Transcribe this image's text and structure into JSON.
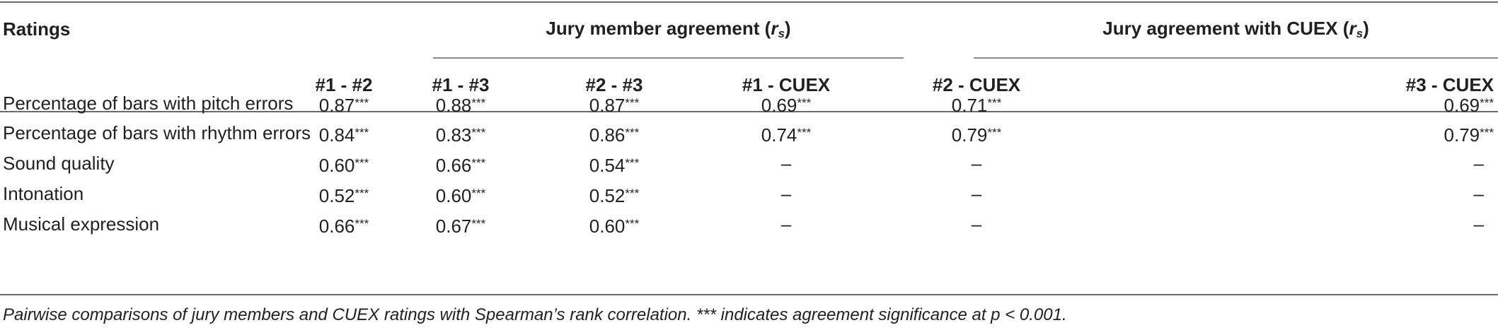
{
  "table": {
    "row_header_label": "Ratings",
    "group1": {
      "label": "Jury member agreement (",
      "symbol": "r",
      "subscript": "s",
      "close": ")"
    },
    "group2": {
      "label": "Jury agreement with CUEX (",
      "symbol": "r",
      "subscript": "s",
      "close": ")"
    },
    "columns": [
      "#1 - #2",
      "#1 - #3",
      "#2 - #3",
      "#1 - CUEX",
      "#2 - CUEX",
      "#3 - CUEX"
    ],
    "rows": [
      {
        "label": "Percentage of bars with pitch errors",
        "cells": [
          {
            "v": "0.87",
            "s": "***"
          },
          {
            "v": "0.88",
            "s": "***"
          },
          {
            "v": "0.87",
            "s": "***"
          },
          {
            "v": "0.69",
            "s": "***"
          },
          {
            "v": "0.71",
            "s": "***"
          },
          {
            "v": "0.69",
            "s": "***"
          }
        ]
      },
      {
        "label": "Percentage of bars with rhythm errors",
        "cells": [
          {
            "v": "0.84",
            "s": "***"
          },
          {
            "v": "0.83",
            "s": "***"
          },
          {
            "v": "0.86",
            "s": "***"
          },
          {
            "v": "0.74",
            "s": "***"
          },
          {
            "v": "0.79",
            "s": "***"
          },
          {
            "v": "0.79",
            "s": "***"
          }
        ]
      },
      {
        "label": "Sound quality",
        "cells": [
          {
            "v": "0.60",
            "s": "***"
          },
          {
            "v": "0.66",
            "s": "***"
          },
          {
            "v": "0.54",
            "s": "***"
          },
          {
            "v": "–",
            "s": ""
          },
          {
            "v": "–",
            "s": ""
          },
          {
            "v": "–",
            "s": ""
          }
        ]
      },
      {
        "label": "Intonation",
        "cells": [
          {
            "v": "0.52",
            "s": "***"
          },
          {
            "v": "0.60",
            "s": "***"
          },
          {
            "v": "0.52",
            "s": "***"
          },
          {
            "v": "–",
            "s": ""
          },
          {
            "v": "–",
            "s": ""
          },
          {
            "v": "–",
            "s": ""
          }
        ]
      },
      {
        "label": "Musical expression",
        "cells": [
          {
            "v": "0.66",
            "s": "***"
          },
          {
            "v": "0.67",
            "s": "***"
          },
          {
            "v": "0.60",
            "s": "***"
          },
          {
            "v": "–",
            "s": ""
          },
          {
            "v": "–",
            "s": ""
          },
          {
            "v": "–",
            "s": ""
          }
        ]
      }
    ],
    "footnote": "Pairwise comparisons of jury members and CUEX ratings with Spearman’s rank correlation. *** indicates agreement significance at p < 0.001."
  }
}
